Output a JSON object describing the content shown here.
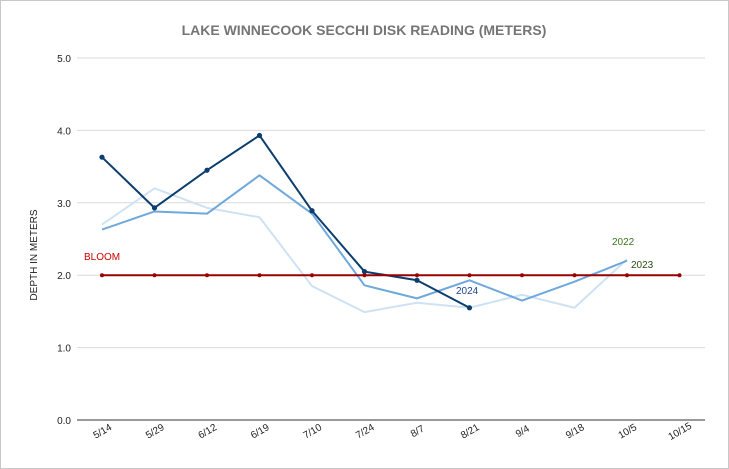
{
  "chart_data": {
    "type": "line",
    "title": "LAKE WINNECOOK SECCHI DISK READING (METERS)",
    "xlabel": "",
    "ylabel": "DEPTH IN METERS",
    "categories": [
      "5/14",
      "5/29",
      "6/12",
      "6/19",
      "7/10",
      "7/24",
      "8/7",
      "8/21",
      "9/4",
      "9/18",
      "10/5",
      "10/15"
    ],
    "yticks": [
      "0.0",
      "1.0",
      "2.0",
      "3.0",
      "4.0",
      "5.0"
    ],
    "ylim": [
      0,
      5
    ],
    "grid": true,
    "legend": "none",
    "series": [
      {
        "key": "light",
        "color": "#cfe2f3",
        "markers": false,
        "values": [
          2.7,
          3.2,
          2.93,
          2.8,
          1.85,
          1.49,
          1.62,
          1.55,
          1.73,
          1.55,
          2.22,
          null
        ]
      },
      {
        "key": "mid",
        "color": "#6fa8dc",
        "markers": false,
        "values": [
          2.63,
          2.88,
          2.85,
          3.38,
          2.85,
          1.86,
          1.68,
          1.93,
          1.65,
          1.91,
          2.2,
          null
        ]
      },
      {
        "name": "2024",
        "key": "dark",
        "color": "#0b3d6e",
        "markers": true,
        "values": [
          3.63,
          2.93,
          3.45,
          3.93,
          2.89,
          2.05,
          1.93,
          1.55,
          null,
          null,
          null,
          null
        ]
      },
      {
        "name": "BLOOM",
        "key": "bloom",
        "color": "#990000",
        "markers": true,
        "values": [
          2.0,
          2.0,
          2.0,
          2.0,
          2.0,
          2.0,
          2.0,
          2.0,
          2.0,
          2.0,
          2.0,
          2.0
        ]
      }
    ],
    "annotations": [
      {
        "text": "BLOOM",
        "color": "#cc0000"
      },
      {
        "text": "2022",
        "color": "#38761d"
      },
      {
        "text": "2023",
        "color": "#274e13"
      },
      {
        "text": "2024",
        "color": "#1c4587"
      }
    ]
  }
}
